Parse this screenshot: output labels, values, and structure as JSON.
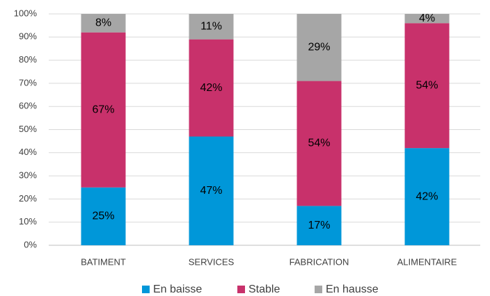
{
  "chart_data": {
    "type": "stacked_bar",
    "categories": [
      "BATIMENT",
      "SERVICES",
      "FABRICATION",
      "ALIMENTAIRE"
    ],
    "series": [
      {
        "name": "En baisse",
        "color": "#0097d9",
        "values": [
          25,
          47,
          17,
          42
        ],
        "value_labels": [
          "25%",
          "47%",
          "17%",
          "42%"
        ]
      },
      {
        "name": "Stable",
        "color": "#c8316b",
        "values": [
          67,
          42,
          54,
          54
        ],
        "value_labels": [
          "67%",
          "42%",
          "54%",
          "54%"
        ]
      },
      {
        "name": "En hausse",
        "color": "#a6a6a6",
        "values": [
          8,
          11,
          29,
          4
        ],
        "value_labels": [
          "8%",
          "11%",
          "29%",
          "4%"
        ]
      }
    ],
    "ylim": [
      0,
      100
    ],
    "yticks": [
      {
        "value": 0,
        "label": "0%"
      },
      {
        "value": 10,
        "label": "10%"
      },
      {
        "value": 20,
        "label": "20%"
      },
      {
        "value": 30,
        "label": "30%"
      },
      {
        "value": 40,
        "label": "40%"
      },
      {
        "value": 50,
        "label": "50%"
      },
      {
        "value": 60,
        "label": "60%"
      },
      {
        "value": 70,
        "label": "70%"
      },
      {
        "value": 80,
        "label": "80%"
      },
      {
        "value": 90,
        "label": "90%"
      },
      {
        "value": 100,
        "label": "100%"
      }
    ],
    "grid": true,
    "legend": "bottom"
  }
}
